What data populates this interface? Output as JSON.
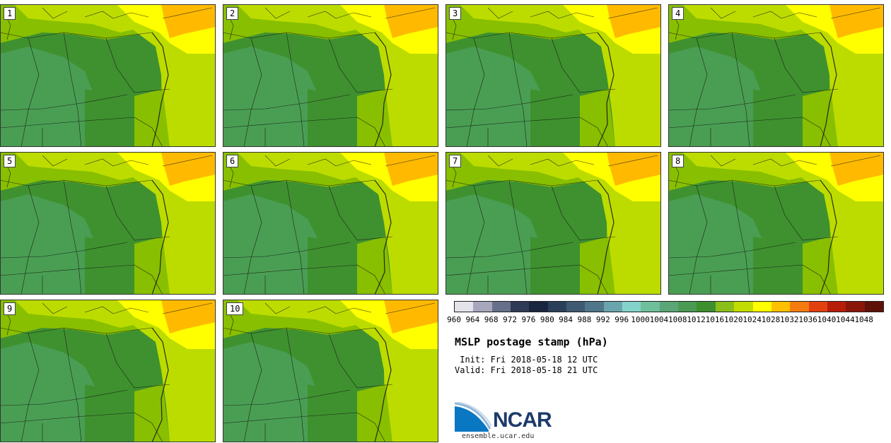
{
  "panels": [
    {
      "label": "1"
    },
    {
      "label": "2"
    },
    {
      "label": "3"
    },
    {
      "label": "4"
    },
    {
      "label": "5"
    },
    {
      "label": "6"
    },
    {
      "label": "7"
    },
    {
      "label": "8"
    },
    {
      "label": "9"
    },
    {
      "label": "10"
    }
  ],
  "colorbar": {
    "levels": [
      "960",
      "964",
      "968",
      "972",
      "976",
      "980",
      "984",
      "988",
      "992",
      "996",
      "1000",
      "1004",
      "1008",
      "1012",
      "1016",
      "1020",
      "1024",
      "1028",
      "1032",
      "1036",
      "1040",
      "1044",
      "1048"
    ],
    "colors": [
      "#e3e3ec",
      "#a6a6bc",
      "#67708a",
      "#2f3a56",
      "#1a2540",
      "#2b3f5a",
      "#3e5a73",
      "#50768a",
      "#6aa5ad",
      "#83d3cb",
      "#6fbf9b",
      "#5aa676",
      "#4b9a53",
      "#3e8f2e",
      "#8abf1a",
      "#c1dd00",
      "#ffff00",
      "#ffc000",
      "#f57b10",
      "#e24010",
      "#b71e0a",
      "#8a160a",
      "#5e1208"
    ]
  },
  "map_colors": {
    "c1008": "#4a9e53",
    "c1012": "#3f912f",
    "c1016": "#88bf00",
    "c1020": "#bcdc00",
    "c1024": "#ffff00",
    "c1028": "#ffba00"
  },
  "title": "MSLP postage stamp (hPa)",
  "init": " Init: Fri 2018-05-18 12 UTC",
  "valid": "Valid: Fri 2018-05-18 21 UTC",
  "logo": {
    "text": "NCAR"
  },
  "url": "ensemble.ucar.edu"
}
